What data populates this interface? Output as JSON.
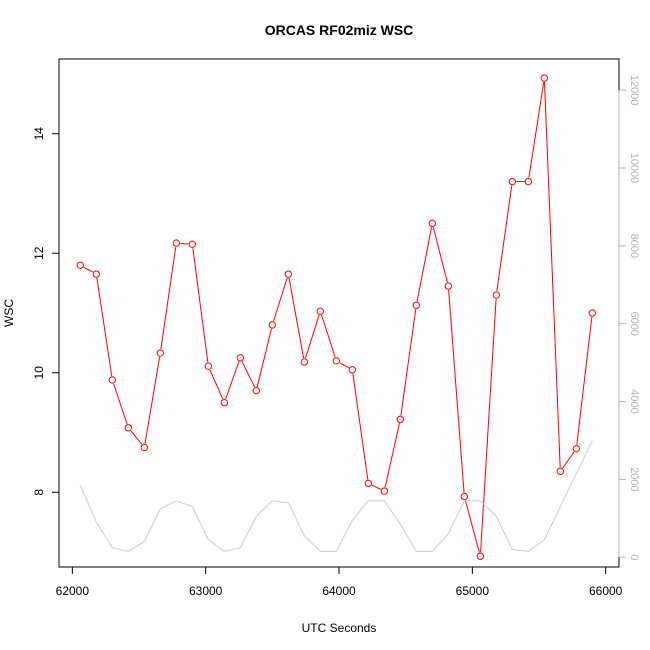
{
  "chart_data": {
    "type": "line",
    "title": "ORCAS RF02miz WSC",
    "xlabel": "UTC Seconds",
    "ylabel": "WSC",
    "xlim": [
      61900,
      66100
    ],
    "ylim": [
      6.75,
      15.25
    ],
    "y2lim": [
      -250,
      12800
    ],
    "x_ticks": [
      62000,
      63000,
      64000,
      65000,
      66000
    ],
    "y_ticks": [
      8,
      10,
      12,
      14
    ],
    "y2_ticks": [
      0,
      2000,
      4000,
      6000,
      8000,
      10000,
      12000
    ],
    "grid": false,
    "legend": "none",
    "x": [
      62060,
      62180,
      62300,
      62420,
      62540,
      62660,
      62780,
      62900,
      63020,
      63140,
      63260,
      63380,
      63500,
      63620,
      63740,
      63860,
      63980,
      64100,
      64220,
      64340,
      64460,
      64580,
      64700,
      64820,
      64940,
      65060,
      65180,
      65300,
      65420,
      65540,
      65660,
      65780,
      65900
    ],
    "series": [
      {
        "axis": "left",
        "color": "#ff0000",
        "marker": "open-circle",
        "values": [
          11.8,
          11.65,
          9.88,
          9.08,
          8.75,
          10.33,
          12.17,
          12.15,
          10.11,
          9.5,
          10.25,
          9.7,
          10.8,
          11.65,
          10.18,
          11.03,
          10.2,
          10.05,
          8.15,
          8.02,
          9.22,
          11.13,
          12.5,
          11.45,
          7.93,
          6.93,
          11.3,
          13.2,
          13.2,
          14.93,
          8.35,
          8.73,
          11.0
        ]
      },
      {
        "axis": "right",
        "color": "#cccccc",
        "marker": "none",
        "values": [
          1850,
          900,
          250,
          150,
          400,
          1250,
          1450,
          1300,
          450,
          150,
          250,
          1050,
          1450,
          1400,
          550,
          150,
          150,
          950,
          1450,
          1450,
          850,
          150,
          150,
          600,
          1450,
          1450,
          1050,
          200,
          150,
          450,
          1300,
          2150,
          3000
        ]
      }
    ]
  }
}
